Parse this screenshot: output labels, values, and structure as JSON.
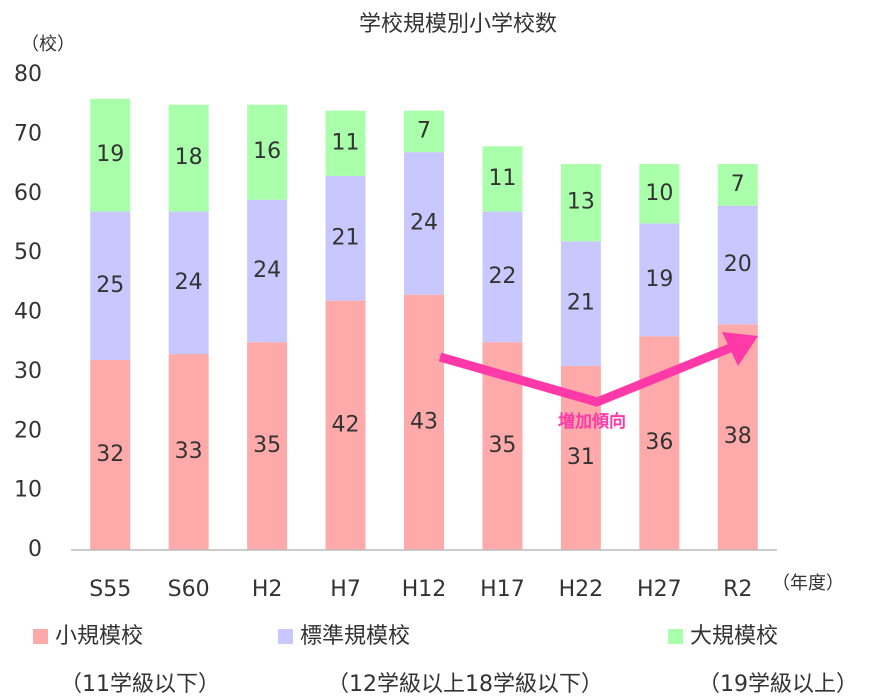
{
  "chart_data": {
    "type": "stacked_bar",
    "title": "学校規模別小学校数",
    "y_label": "（校）",
    "x_label": "（年度）",
    "categories": [
      "S55",
      "S60",
      "H2",
      "H7",
      "H12",
      "H17",
      "H22",
      "H27",
      "R2"
    ],
    "series": [
      {
        "name": "小規模校",
        "note": "（11学級以下）",
        "color": "#ffaaaa",
        "values": [
          32,
          33,
          35,
          42,
          43,
          35,
          31,
          36,
          38
        ]
      },
      {
        "name": "標準規模校",
        "note": "（12学級以上18学級以下）",
        "color": "#c8c8ff",
        "values": [
          25,
          24,
          24,
          21,
          24,
          22,
          21,
          19,
          20
        ]
      },
      {
        "name": "大規模校",
        "note": "（19学級以上）",
        "color": "#aaffaa",
        "values": [
          19,
          18,
          16,
          11,
          7,
          11,
          13,
          10,
          7
        ]
      }
    ],
    "ylim": [
      0,
      80
    ],
    "yticks": [
      0,
      10,
      20,
      30,
      40,
      50,
      60,
      70,
      80
    ],
    "grid": false,
    "annotation": "増加傾向"
  }
}
